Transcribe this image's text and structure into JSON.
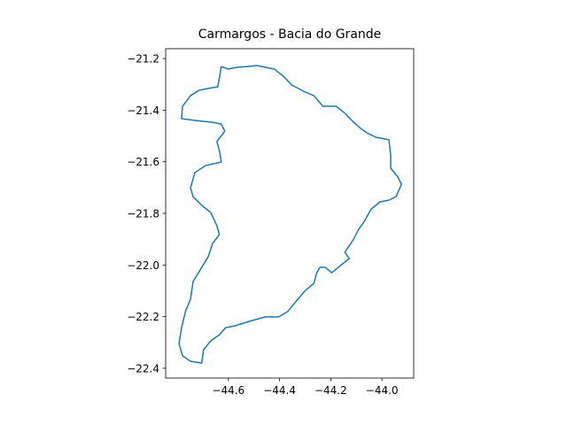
{
  "chart_data": {
    "type": "line",
    "title": "Carmargos - Bacia do Grande",
    "x": [
      -44.628,
      -44.6,
      -44.566,
      -44.524,
      -44.49,
      -44.455,
      -44.421,
      -44.386,
      -44.352,
      -44.3,
      -44.266,
      -44.231,
      -44.179,
      -44.145,
      -44.111,
      -44.083,
      -44.059,
      -44.024,
      -43.973,
      -43.966,
      -43.966,
      -43.938,
      -43.924,
      -43.945,
      -43.973,
      -44.007,
      -44.042,
      -44.069,
      -44.093,
      -44.111,
      -44.145,
      -44.128,
      -44.162,
      -44.197,
      -44.221,
      -44.242,
      -44.255,
      -44.266,
      -44.3,
      -44.335,
      -44.369,
      -44.404,
      -44.455,
      -44.507,
      -44.576,
      -44.611,
      -44.635,
      -44.669,
      -44.697,
      -44.704,
      -44.748,
      -44.779,
      -44.793,
      -44.783,
      -44.766,
      -44.748,
      -44.738,
      -44.704,
      -44.679,
      -44.662,
      -44.635,
      -44.645,
      -44.669,
      -44.704,
      -44.738,
      -44.748,
      -44.731,
      -44.69,
      -44.628,
      -44.635,
      -44.645,
      -44.614,
      -44.628,
      -44.662,
      -44.731,
      -44.783,
      -44.779,
      -44.748,
      -44.714,
      -44.679,
      -44.642,
      -44.635,
      -44.628
    ],
    "series": [
      {
        "color": "#1f77b4",
        "values": [
          -21.231,
          -21.241,
          -21.234,
          -21.231,
          -21.227,
          -21.234,
          -21.241,
          -21.268,
          -21.303,
          -21.33,
          -21.344,
          -21.385,
          -21.385,
          -21.412,
          -21.447,
          -21.471,
          -21.488,
          -21.505,
          -21.515,
          -21.574,
          -21.625,
          -21.659,
          -21.687,
          -21.735,
          -21.749,
          -21.755,
          -21.783,
          -21.831,
          -21.865,
          -21.9,
          -21.951,
          -21.975,
          -22.002,
          -22.03,
          -22.009,
          -22.009,
          -22.03,
          -22.071,
          -22.099,
          -22.14,
          -22.181,
          -22.201,
          -22.201,
          -22.215,
          -22.236,
          -22.243,
          -22.27,
          -22.294,
          -22.328,
          -22.38,
          -22.373,
          -22.352,
          -22.304,
          -22.243,
          -22.174,
          -22.133,
          -22.064,
          -22.009,
          -21.968,
          -21.917,
          -21.882,
          -21.848,
          -21.797,
          -21.769,
          -21.735,
          -21.701,
          -21.642,
          -21.615,
          -21.601,
          -21.557,
          -21.522,
          -21.481,
          -21.454,
          -21.447,
          -21.44,
          -21.433,
          -21.385,
          -21.344,
          -21.323,
          -21.316,
          -21.31,
          -21.275,
          -21.231
        ]
      }
    ],
    "xlim": [
      -44.845,
      -43.876
    ],
    "ylim": [
      -21.162,
      -22.438
    ],
    "xticks": [
      {
        "value": -44.6,
        "label": "−44.6"
      },
      {
        "value": -44.4,
        "label": "−44.4"
      },
      {
        "value": -44.2,
        "label": "−44.2"
      },
      {
        "value": -44.0,
        "label": "−44.0"
      }
    ],
    "yticks": [
      {
        "value": -21.2,
        "label": "−21.2"
      },
      {
        "value": -21.4,
        "label": "−21.4"
      },
      {
        "value": -21.6,
        "label": "−21.6"
      },
      {
        "value": -21.8,
        "label": "−21.8"
      },
      {
        "value": -22.0,
        "label": "−22.0"
      },
      {
        "value": -22.2,
        "label": "−22.2"
      },
      {
        "value": -22.4,
        "label": "−22.4"
      }
    ],
    "grid": false
  }
}
